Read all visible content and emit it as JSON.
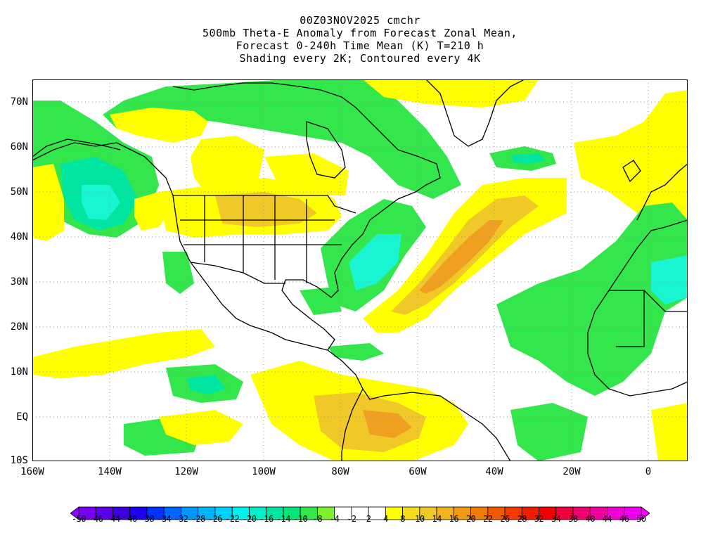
{
  "title": {
    "line1": "00Z03NOV2025 cmchr",
    "line2": "500mb Theta-E Anomaly from Forecast Zonal Mean,",
    "line3": "Forecast 0-240h Time Mean (K) T=210 h",
    "line4": "Shading every 2K; Contoured every 4K"
  },
  "axes": {
    "lat_labels": [
      "70N",
      "60N",
      "50N",
      "40N",
      "30N",
      "20N",
      "10N",
      "EQ",
      "10S"
    ],
    "lon_labels": [
      "160W",
      "140W",
      "120W",
      "100W",
      "80W",
      "60W",
      "40W",
      "20W",
      "0"
    ]
  },
  "map": {
    "lon_range": [
      -160,
      10
    ],
    "lat_range": [
      -10,
      75
    ],
    "grid": "dotted every 20 deg lon, 10 deg lat",
    "shading_colors": {
      "neg_14_10": "#00e6a0",
      "neg_10_8": "#32e64b",
      "neg_8_4": "#7ef02c",
      "pos_4_8": "#ffff00",
      "pos_8_10": "#f5dc1e",
      "pos_10_14": "#f0c828",
      "pos_14_16": "#f0a020",
      "cyan": "#19f5d2"
    }
  },
  "colorbar": {
    "labels": [
      "-50",
      "-46",
      "-44",
      "-40",
      "-38",
      "-34",
      "-32",
      "-28",
      "-26",
      "-22",
      "-20",
      "-16",
      "-14",
      "-10",
      "-8",
      "-4",
      "-2",
      "2",
      "4",
      "8",
      "10",
      "14",
      "16",
      "20",
      "22",
      "26",
      "28",
      "32",
      "34",
      "38",
      "40",
      "44",
      "46",
      "50"
    ],
    "colors": [
      "#8c00ff",
      "#7800f0",
      "#5a00e6",
      "#3c00dc",
      "#1e00f0",
      "#0032ff",
      "#0064ff",
      "#0096ff",
      "#00b4ff",
      "#00d2ff",
      "#00f0f0",
      "#00f0c8",
      "#00e6a0",
      "#00e678",
      "#32e64b",
      "#7ef02c",
      "#ffffff",
      "#ffffff",
      "#ffffff",
      "#ffff00",
      "#f5dc1e",
      "#f0c828",
      "#f0b41e",
      "#f09b14",
      "#f07d0a",
      "#f05a00",
      "#f03c00",
      "#f01e00",
      "#f00000",
      "#f0003c",
      "#f0006e",
      "#f000a0",
      "#f000d2",
      "#f000f0",
      "#ff00ff"
    ]
  }
}
